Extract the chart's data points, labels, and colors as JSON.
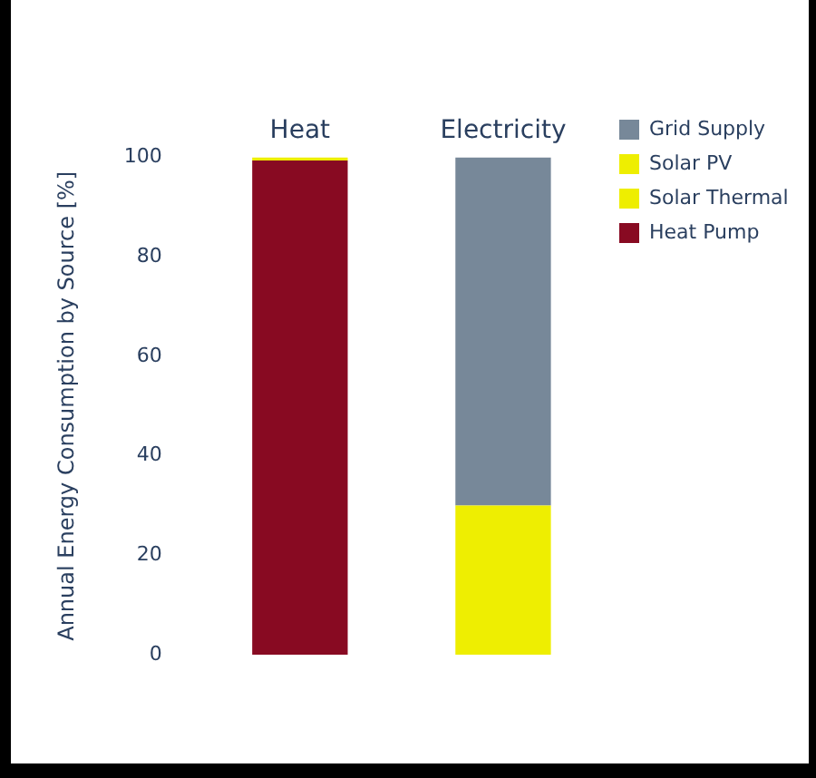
{
  "chart_data": {
    "type": "bar",
    "stacked": true,
    "ylabel": "Annual Energy Consumption by Source [%]",
    "categories": [
      "Heat",
      "Electricity"
    ],
    "ylim": [
      0,
      100
    ],
    "yticks": [
      0,
      20,
      40,
      60,
      80,
      100
    ],
    "grid": false,
    "legend": "top right",
    "series": [
      {
        "name": "Heat Pump",
        "color": "#880a22",
        "values": [
          99.4,
          0
        ]
      },
      {
        "name": "Solar Thermal",
        "color": "#eeee00",
        "values": [
          0.6,
          0
        ]
      },
      {
        "name": "Solar PV",
        "color": "#eeee01",
        "values": [
          0,
          30
        ]
      },
      {
        "name": "Grid Supply",
        "color": "#778899",
        "values": [
          0,
          70
        ]
      }
    ]
  }
}
